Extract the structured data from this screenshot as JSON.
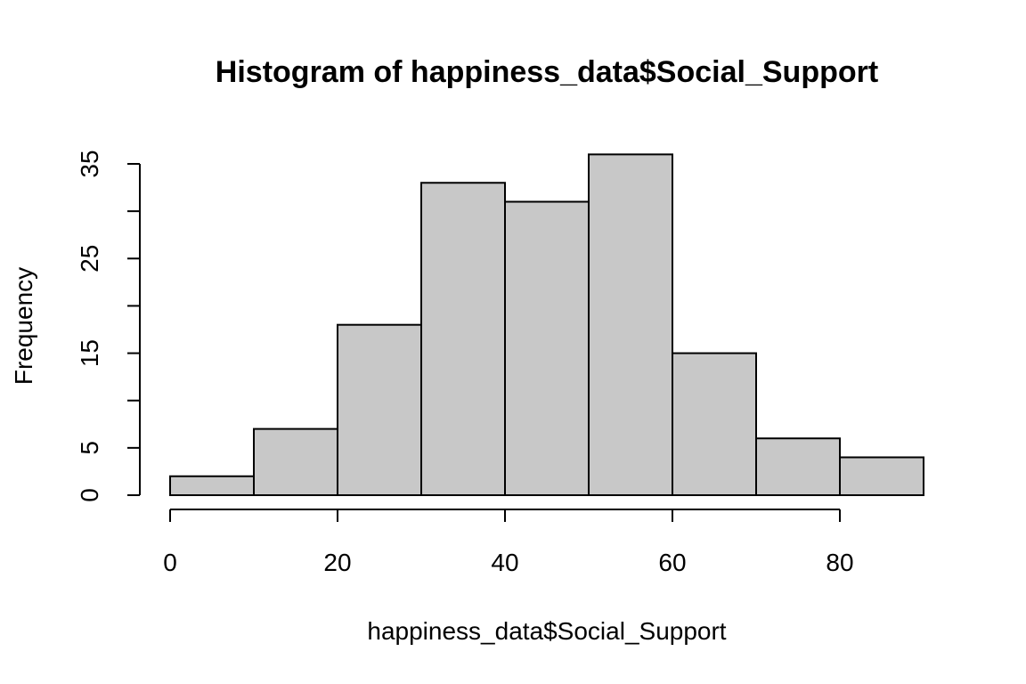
{
  "chart_data": {
    "type": "bar",
    "title": "Histogram of happiness_data$Social_Support",
    "xlabel": "happiness_data$Social_Support",
    "ylabel": "Frequency",
    "bins": [
      {
        "start": 0,
        "end": 10,
        "count": 2
      },
      {
        "start": 10,
        "end": 20,
        "count": 7
      },
      {
        "start": 20,
        "end": 30,
        "count": 18
      },
      {
        "start": 30,
        "end": 40,
        "count": 33
      },
      {
        "start": 40,
        "end": 50,
        "count": 31
      },
      {
        "start": 50,
        "end": 60,
        "count": 36
      },
      {
        "start": 60,
        "end": 70,
        "count": 15
      },
      {
        "start": 70,
        "end": 80,
        "count": 6
      },
      {
        "start": 80,
        "end": 90,
        "count": 4
      }
    ],
    "x_ticks": [
      0,
      20,
      40,
      60,
      80
    ],
    "y_ticks": [
      0,
      5,
      10,
      15,
      20,
      25,
      30,
      35
    ],
    "y_tick_labels": [
      "0",
      "5",
      "",
      "15",
      "",
      "25",
      "",
      "35"
    ],
    "xlim": [
      0,
      90
    ],
    "ylim": [
      0,
      36
    ],
    "grid": false,
    "bar_fill": "#c8c8c8",
    "bar_stroke": "#000000"
  }
}
